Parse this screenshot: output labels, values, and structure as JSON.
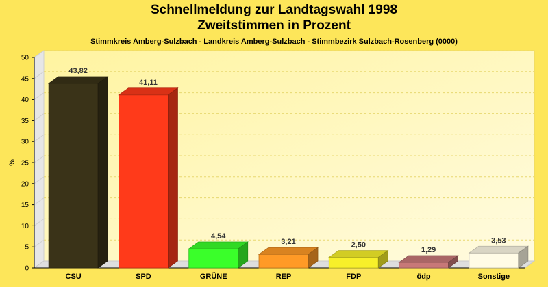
{
  "header": {
    "title": "Schnellmeldung zur Landtagswahl 1998",
    "subtitle": "Zweitstimmen in Prozent",
    "caption": "Stimmkreis Amberg-Sulzbach - Landkreis Amberg-Sulzbach - Stimmbezirk Sulzbach-Rosenberg (0000)"
  },
  "chart_data": {
    "type": "bar",
    "title": "Schnellmeldung zur Landtagswahl 1998",
    "subtitle": "Zweitstimmen in Prozent",
    "xlabel": "",
    "ylabel": "%",
    "ylim": [
      0,
      50
    ],
    "yticks": [
      "0",
      "5",
      "10",
      "15",
      "20",
      "25",
      "30",
      "35",
      "40",
      "45",
      "50"
    ],
    "grid": true,
    "categories": [
      "CSU",
      "SPD",
      "GRÜNE",
      "REP",
      "FDP",
      "ödp",
      "Sonstige"
    ],
    "values": [
      43.82,
      41.11,
      4.54,
      3.21,
      2.5,
      1.29,
      3.53
    ],
    "value_labels": [
      "43,82",
      "41,11",
      "4,54",
      "3,21",
      "2,50",
      "1,29",
      "3,53"
    ],
    "colors": [
      "#3a3318",
      "#ff3a1a",
      "#3aff2a",
      "#ff9a26",
      "#f7f02a",
      "#c77878",
      "#fffbe6"
    ]
  }
}
